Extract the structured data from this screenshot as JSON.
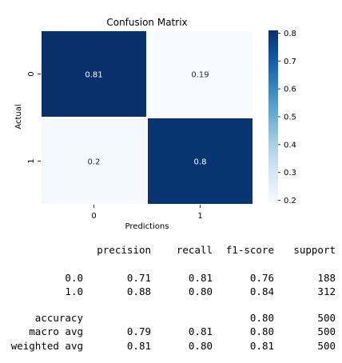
{
  "chart_data": {
    "type": "heatmap",
    "title": "Confusion Matrix",
    "xlabel": "Predictions",
    "ylabel": "Actual",
    "x_categories": [
      "0",
      "1"
    ],
    "y_categories": [
      "0",
      "1"
    ],
    "values": [
      [
        0.81,
        0.19
      ],
      [
        0.2,
        0.8
      ]
    ],
    "annotations": [
      [
        "0.81",
        "0.19"
      ],
      [
        "0.2",
        "0.8"
      ]
    ],
    "colorbar": {
      "range": [
        0.19,
        0.81
      ],
      "ticks": [
        "0.2",
        "0.3",
        "0.4",
        "0.5",
        "0.6",
        "0.7",
        "0.8"
      ],
      "colormap": "Blues",
      "low_color": "#f7fbff",
      "high_color": "#08306b"
    },
    "annot_colors": {
      "light_text": "#ffffff",
      "dark_text": "#262626"
    }
  },
  "report": {
    "headers": [
      "precision",
      "recall",
      "f1-score",
      "support"
    ],
    "rows": [
      {
        "label": "0.0",
        "precision": "0.71",
        "recall": "0.81",
        "f1": "0.76",
        "support": "188"
      },
      {
        "label": "1.0",
        "precision": "0.88",
        "recall": "0.80",
        "f1": "0.84",
        "support": "312"
      },
      {
        "label": "accuracy",
        "precision": "",
        "recall": "",
        "f1": "0.80",
        "support": "500"
      },
      {
        "label": "macro avg",
        "precision": "0.79",
        "recall": "0.81",
        "f1": "0.80",
        "support": "500"
      },
      {
        "label": "weighted avg",
        "precision": "0.81",
        "recall": "0.80",
        "f1": "0.81",
        "support": "500"
      }
    ]
  }
}
